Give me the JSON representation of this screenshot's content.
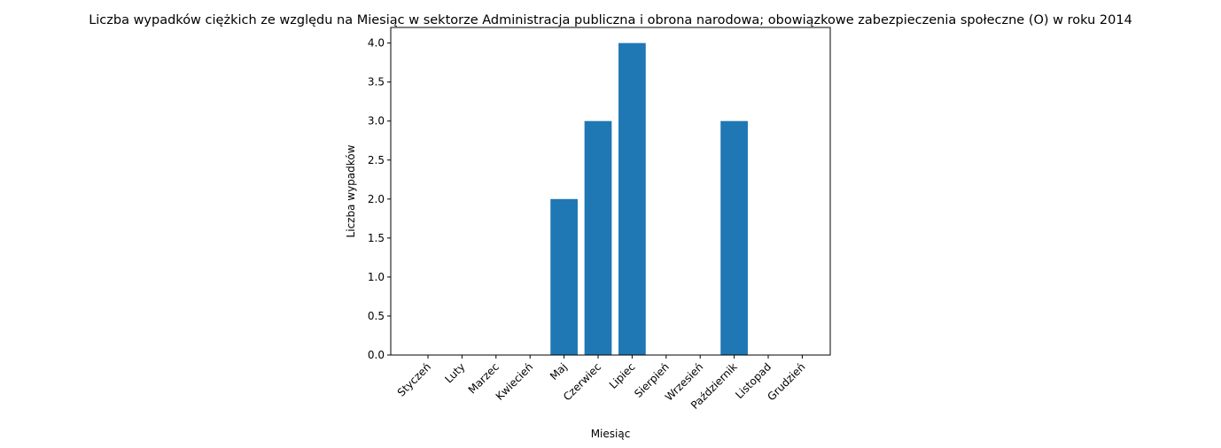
{
  "chart_data": {
    "type": "bar",
    "title": "Liczba wypadków ciężkich ze względu na Miesiąc w sektorze Administracja publiczna i obrona narodowa; obowiązkowe zabezpieczenia społeczne (O) w roku 2014",
    "xlabel": "Miesiąc",
    "ylabel": "Liczba wypadków",
    "categories": [
      "Styczeń",
      "Luty",
      "Marzec",
      "Kwiecień",
      "Maj",
      "Czerwiec",
      "Lipiec",
      "Sierpień",
      "Wrzesień",
      "Październik",
      "Listopad",
      "Grudzień"
    ],
    "values": [
      0,
      0,
      0,
      0,
      2,
      3,
      4,
      0,
      0,
      3,
      0,
      0
    ],
    "ylim": [
      0,
      4.2
    ],
    "yticks": [
      "0.0",
      "0.5",
      "1.0",
      "1.5",
      "2.0",
      "2.5",
      "3.0",
      "3.5",
      "4.0"
    ],
    "bar_color": "#1f77b4",
    "grid": false
  }
}
